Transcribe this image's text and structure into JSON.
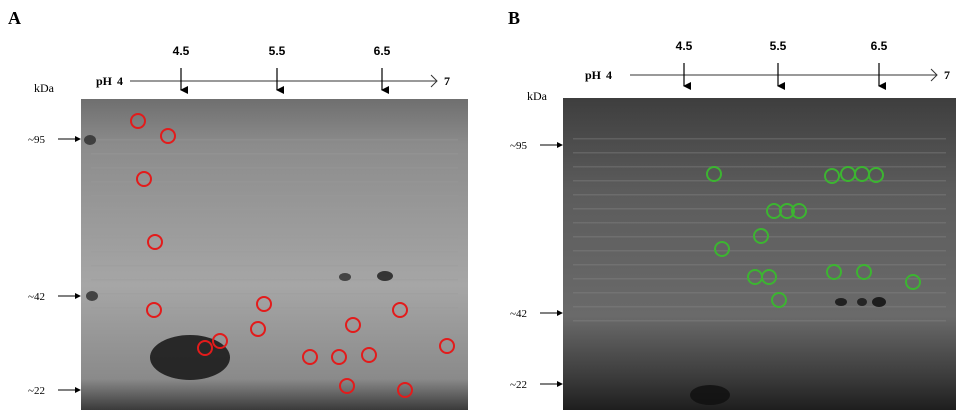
{
  "panels": [
    {
      "label": "A",
      "ph_prefix": "pH",
      "ph_start": "4",
      "ph_end": "7",
      "ph_ticks": [
        "4.5",
        "5.5",
        "6.5"
      ],
      "mw_unit": "kDa",
      "mw_markers": [
        "~95",
        "~42",
        "~22"
      ],
      "spot_color": "#e31b1b",
      "spot_count": 17
    },
    {
      "label": "B",
      "ph_prefix": "pH",
      "ph_start": "4",
      "ph_end": "7",
      "ph_ticks": [
        "4.5",
        "5.5",
        "6.5"
      ],
      "mw_unit": "kDa",
      "mw_markers": [
        "~95",
        "~42",
        "~22"
      ],
      "spot_color": "#3cb531",
      "spot_count": 16
    }
  ]
}
